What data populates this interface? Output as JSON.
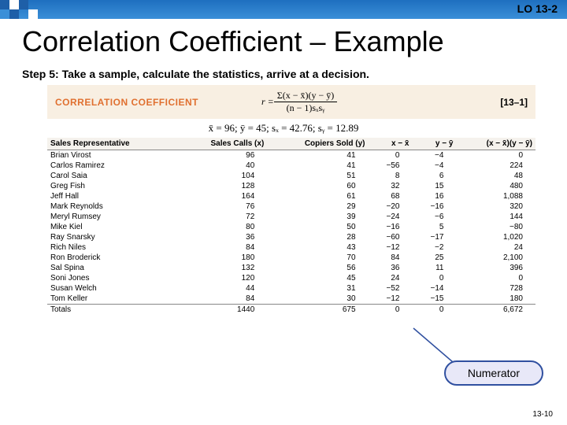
{
  "header": {
    "lo": "LO 13-2"
  },
  "title": "Correlation Coefficient – Example",
  "step": "Step 5: Take a sample, calculate the statistics, arrive at a decision.",
  "formula": {
    "label": "CORRELATION COEFFICIENT",
    "r": "r =",
    "num": "Σ(x − x̄)(y − ȳ)",
    "den": "(n − 1)sₓsᵧ",
    "ref": "[13–1]"
  },
  "stats": "x̄ = 96; ȳ = 45; sₓ = 42.76; sᵧ = 12.89",
  "table": {
    "headers": [
      "Sales Representative",
      "Sales Calls (x)",
      "Copiers Sold (y)",
      "x − x̄",
      "y − ȳ",
      "(x − x̄)(y − ȳ)"
    ],
    "rows": [
      [
        "Brian Virost",
        "96",
        "41",
        "0",
        "−4",
        "0"
      ],
      [
        "Carlos Ramirez",
        "40",
        "41",
        "−56",
        "−4",
        "224"
      ],
      [
        "Carol Saia",
        "104",
        "51",
        "8",
        "6",
        "48"
      ],
      [
        "Greg Fish",
        "128",
        "60",
        "32",
        "15",
        "480"
      ],
      [
        "Jeff Hall",
        "164",
        "61",
        "68",
        "16",
        "1,088"
      ],
      [
        "Mark Reynolds",
        "76",
        "29",
        "−20",
        "−16",
        "320"
      ],
      [
        "Meryl Rumsey",
        "72",
        "39",
        "−24",
        "−6",
        "144"
      ],
      [
        "Mike Kiel",
        "80",
        "50",
        "−16",
        "5",
        "−80"
      ],
      [
        "Ray Snarsky",
        "36",
        "28",
        "−60",
        "−17",
        "1,020"
      ],
      [
        "Rich Niles",
        "84",
        "43",
        "−12",
        "−2",
        "24"
      ],
      [
        "Ron Broderick",
        "180",
        "70",
        "84",
        "25",
        "2,100"
      ],
      [
        "Sal Spina",
        "132",
        "56",
        "36",
        "11",
        "396"
      ],
      [
        "Soni Jones",
        "120",
        "45",
        "24",
        "0",
        "0"
      ],
      [
        "Susan Welch",
        "44",
        "31",
        "−52",
        "−14",
        "728"
      ],
      [
        "Tom Keller",
        "84",
        "30",
        "−12",
        "−15",
        "180"
      ]
    ],
    "totals": [
      "Totals",
      "1440",
      "675",
      "0",
      "0",
      "6,672"
    ]
  },
  "callout": "Numerator",
  "page": "13-10",
  "pixels": {
    "c1": "#1e5fa8",
    "c2": "#3a8fd8",
    "c3": "#ffffff"
  }
}
